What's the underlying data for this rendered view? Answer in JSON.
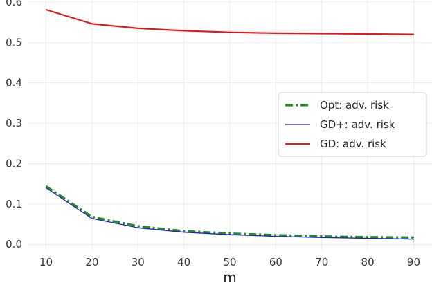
{
  "chart_data": {
    "type": "line",
    "title": "",
    "xlabel": "m",
    "ylabel": "",
    "xlim": [
      6,
      94
    ],
    "ylim": [
      -0.015,
      0.605
    ],
    "x_ticks": [
      "10",
      "20",
      "30",
      "40",
      "50",
      "60",
      "70",
      "80",
      "90"
    ],
    "y_ticks": [
      "0.0",
      "0.1",
      "0.2",
      "0.3",
      "0.4",
      "0.5",
      "0.6"
    ],
    "grid": true,
    "legend_position": "center-right",
    "series": [
      {
        "name": "Opt: adv. risk",
        "color": "#228b22",
        "style": "dashdot",
        "x": [
          10,
          20,
          30,
          40,
          50,
          60,
          70,
          80,
          90
        ],
        "y": [
          0.144,
          0.068,
          0.045,
          0.033,
          0.027,
          0.023,
          0.02,
          0.018,
          0.017
        ]
      },
      {
        "name": "GD+: adv. risk",
        "color": "#1f1fbf",
        "style": "solid-thin",
        "x": [
          10,
          20,
          30,
          40,
          50,
          60,
          70,
          80,
          90
        ],
        "y": [
          0.14,
          0.064,
          0.041,
          0.03,
          0.024,
          0.02,
          0.017,
          0.015,
          0.013
        ]
      },
      {
        "name": "GD: adv. risk",
        "color": "#e3191c",
        "style": "solid",
        "x": [
          10,
          20,
          30,
          40,
          50,
          60,
          70,
          80,
          90
        ],
        "y": [
          0.581,
          0.546,
          0.535,
          0.529,
          0.525,
          0.523,
          0.522,
          0.521,
          0.52
        ]
      }
    ]
  }
}
